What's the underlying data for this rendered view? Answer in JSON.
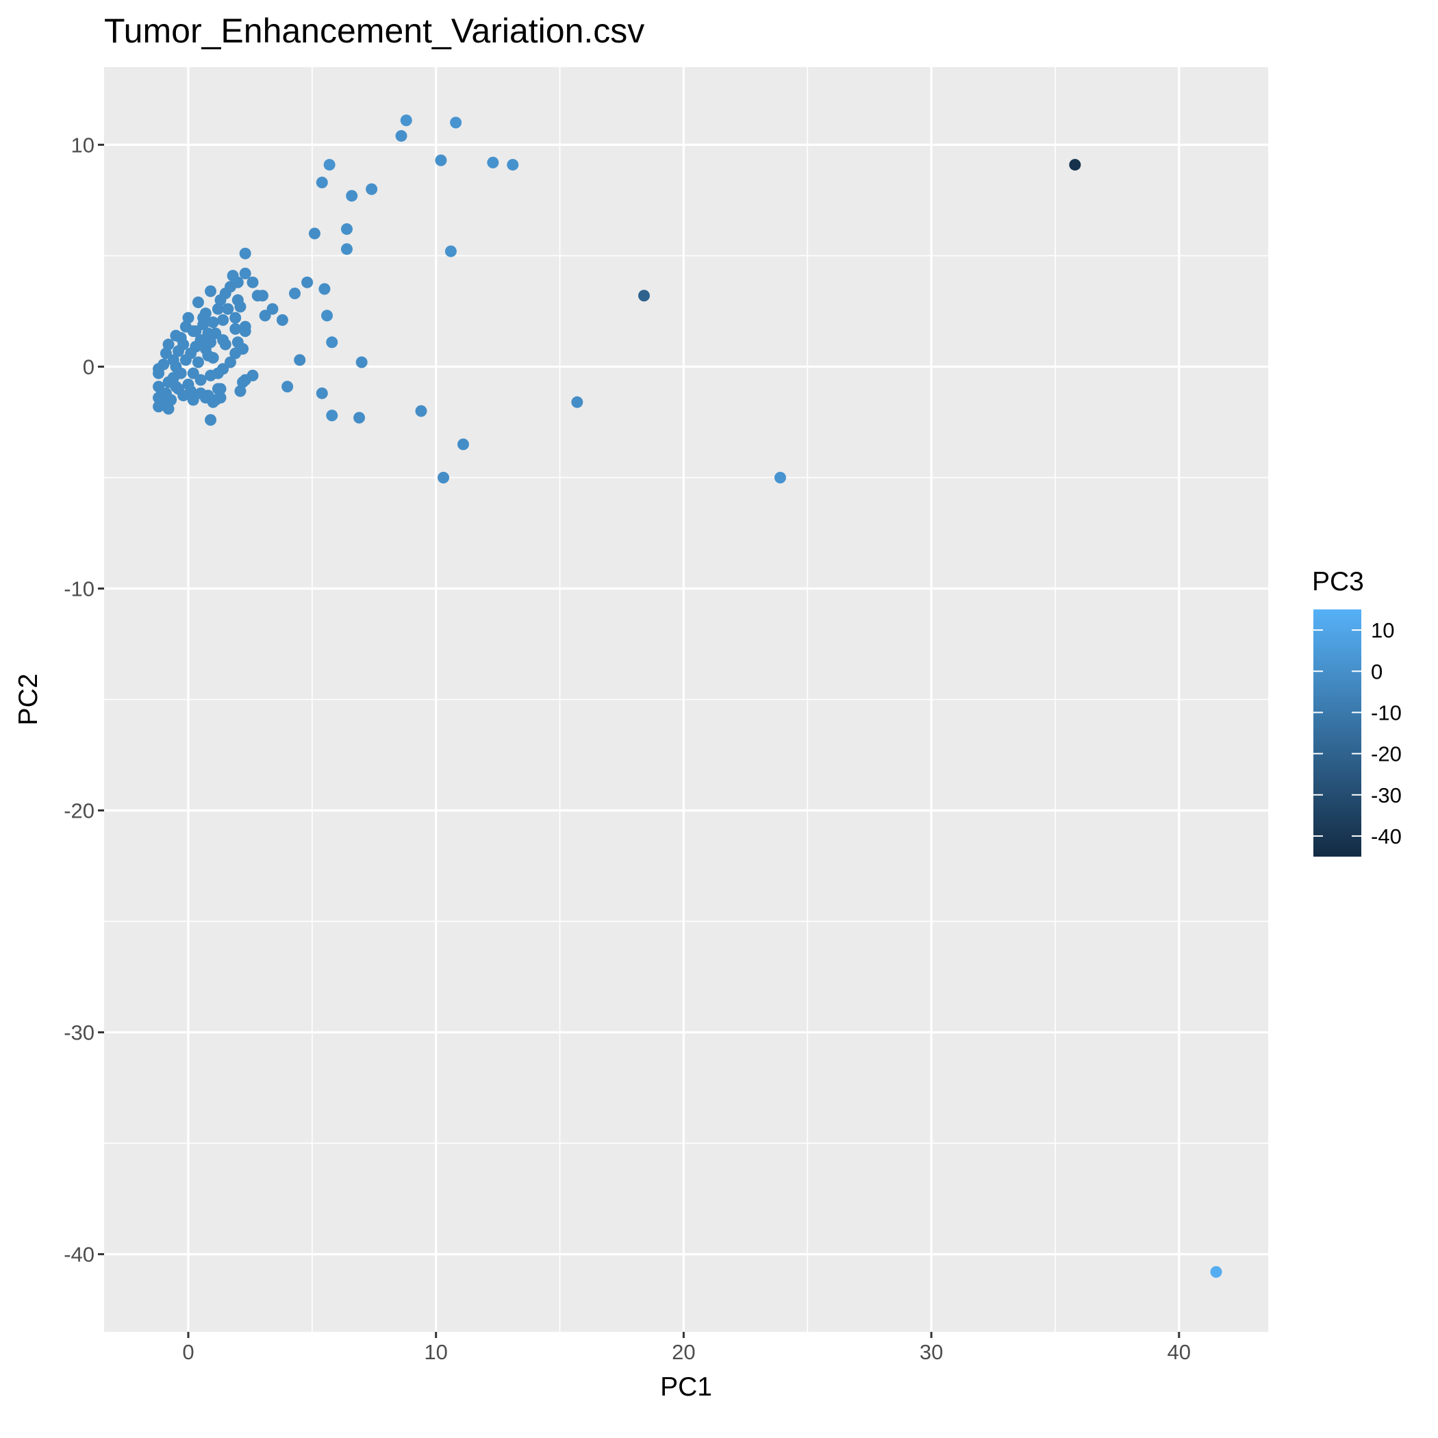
{
  "chart_data": {
    "type": "scatter",
    "title": "Tumor_Enhancement_Variation.csv",
    "xlabel": "PC1",
    "ylabel": "PC2",
    "xlim": [
      -3.4,
      43.6
    ],
    "ylim": [
      -43.5,
      13.5
    ],
    "xticks": [
      0,
      10,
      20,
      30,
      40
    ],
    "xtick_labels": [
      "0",
      "10",
      "20",
      "30",
      "40"
    ],
    "yticks": [
      10,
      0,
      -10,
      -20,
      -30,
      -40
    ],
    "ytick_labels": [
      "10",
      "0",
      "-10",
      "-20",
      "-30",
      "-40"
    ],
    "grid": true,
    "color_legend": {
      "title": "PC3",
      "range": [
        -45,
        15
      ],
      "ticks": [
        10,
        0,
        -10,
        -20,
        -30,
        -40
      ],
      "tick_labels": [
        "10",
        "0",
        "-10",
        "-20",
        "-30",
        "-40"
      ],
      "low_color": "#132B43",
      "high_color": "#56B1F7",
      "placement": "right"
    },
    "colors": {
      "panel_background": "#EBEBEB",
      "grid_major": "#FFFFFF",
      "tick_text": "#4D4D4D"
    },
    "points": [
      {
        "x": 41.5,
        "y": -40.8,
        "c": 13
      },
      {
        "x": 35.8,
        "y": 9.1,
        "c": -42
      },
      {
        "x": 18.4,
        "y": 3.2,
        "c": -20
      },
      {
        "x": 23.9,
        "y": -5.0,
        "c": 2
      },
      {
        "x": 15.7,
        "y": -1.6,
        "c": -1
      },
      {
        "x": 10.3,
        "y": -5.0,
        "c": -1
      },
      {
        "x": 11.1,
        "y": -3.5,
        "c": -1
      },
      {
        "x": 9.4,
        "y": -2.0,
        "c": -1
      },
      {
        "x": 8.8,
        "y": 11.1,
        "c": 2
      },
      {
        "x": 10.8,
        "y": 11.0,
        "c": 2
      },
      {
        "x": 8.6,
        "y": 10.4,
        "c": 0
      },
      {
        "x": 10.2,
        "y": 9.3,
        "c": 0
      },
      {
        "x": 12.3,
        "y": 9.2,
        "c": 1
      },
      {
        "x": 13.1,
        "y": 9.1,
        "c": 1
      },
      {
        "x": 5.7,
        "y": 9.1,
        "c": 2
      },
      {
        "x": 5.4,
        "y": 8.3,
        "c": 0
      },
      {
        "x": 6.6,
        "y": 7.7,
        "c": 0
      },
      {
        "x": 7.4,
        "y": 8.0,
        "c": 0
      },
      {
        "x": 10.6,
        "y": 5.2,
        "c": 1
      },
      {
        "x": 5.1,
        "y": 6.0,
        "c": -1
      },
      {
        "x": 6.4,
        "y": 6.2,
        "c": 0
      },
      {
        "x": 6.4,
        "y": 5.3,
        "c": 0
      },
      {
        "x": 5.5,
        "y": 3.5,
        "c": -1
      },
      {
        "x": 4.8,
        "y": 3.8,
        "c": -2
      },
      {
        "x": 4.3,
        "y": 3.3,
        "c": -1
      },
      {
        "x": 5.6,
        "y": 2.3,
        "c": 0
      },
      {
        "x": 5.8,
        "y": 1.1,
        "c": 0
      },
      {
        "x": 7.0,
        "y": 0.2,
        "c": -1
      },
      {
        "x": 4.5,
        "y": 0.3,
        "c": -2
      },
      {
        "x": 4.0,
        "y": -0.9,
        "c": -1
      },
      {
        "x": 5.4,
        "y": -1.2,
        "c": -1
      },
      {
        "x": 5.8,
        "y": -2.2,
        "c": 0
      },
      {
        "x": 6.9,
        "y": -2.3,
        "c": -1
      },
      {
        "x": 3.8,
        "y": 2.1,
        "c": -2
      },
      {
        "x": 3.4,
        "y": 2.6,
        "c": -2
      },
      {
        "x": 3.1,
        "y": 2.3,
        "c": -2
      },
      {
        "x": 3.0,
        "y": 3.2,
        "c": -2
      },
      {
        "x": 2.8,
        "y": 3.2,
        "c": -2
      },
      {
        "x": 2.6,
        "y": 3.8,
        "c": -2
      },
      {
        "x": 2.3,
        "y": 4.2,
        "c": -1
      },
      {
        "x": 2.3,
        "y": 5.1,
        "c": -1
      },
      {
        "x": 2.0,
        "y": 3.8,
        "c": -2
      },
      {
        "x": 1.8,
        "y": 4.1,
        "c": -1
      },
      {
        "x": 1.7,
        "y": 3.6,
        "c": -2
      },
      {
        "x": 1.5,
        "y": 3.3,
        "c": -2
      },
      {
        "x": 2.1,
        "y": 2.7,
        "c": -2
      },
      {
        "x": 2.3,
        "y": 1.8,
        "c": -2
      },
      {
        "x": 2.3,
        "y": 1.6,
        "c": -2
      },
      {
        "x": 1.9,
        "y": 2.2,
        "c": -2
      },
      {
        "x": 2.0,
        "y": 3.0,
        "c": -2
      },
      {
        "x": 1.3,
        "y": 3.0,
        "c": -2
      },
      {
        "x": 1.2,
        "y": 2.6,
        "c": -2
      },
      {
        "x": 0.9,
        "y": 3.4,
        "c": -2
      },
      {
        "x": 0.4,
        "y": 2.9,
        "c": -2
      },
      {
        "x": 0.7,
        "y": 2.4,
        "c": -2
      },
      {
        "x": 0.0,
        "y": 2.2,
        "c": -2
      },
      {
        "x": 0.2,
        "y": 1.6,
        "c": -2
      },
      {
        "x": 2.2,
        "y": 0.8,
        "c": -2
      },
      {
        "x": 1.9,
        "y": 0.6,
        "c": -2
      },
      {
        "x": 2.0,
        "y": 1.1,
        "c": -2
      },
      {
        "x": 1.4,
        "y": 1.2,
        "c": -2
      },
      {
        "x": 1.5,
        "y": 1.0,
        "c": -2
      },
      {
        "x": 2.6,
        "y": -0.4,
        "c": -2
      },
      {
        "x": 2.3,
        "y": -0.6,
        "c": -2
      },
      {
        "x": 2.2,
        "y": -0.7,
        "c": -2
      },
      {
        "x": 2.1,
        "y": -1.1,
        "c": -2
      },
      {
        "x": 1.4,
        "y": -0.1,
        "c": -2
      },
      {
        "x": 1.2,
        "y": -0.3,
        "c": -2
      },
      {
        "x": 1.2,
        "y": -1.0,
        "c": -2
      },
      {
        "x": 1.3,
        "y": -1.0,
        "c": -2
      },
      {
        "x": 1.3,
        "y": -1.4,
        "c": -2
      },
      {
        "x": 1.1,
        "y": -1.5,
        "c": -2
      },
      {
        "x": 1.0,
        "y": -1.6,
        "c": -2
      },
      {
        "x": 0.8,
        "y": -1.3,
        "c": -2
      },
      {
        "x": 0.7,
        "y": -1.4,
        "c": -2
      },
      {
        "x": 0.5,
        "y": -1.2,
        "c": -2
      },
      {
        "x": 0.9,
        "y": -2.4,
        "c": -2
      },
      {
        "x": 0.8,
        "y": 0.5,
        "c": -2
      },
      {
        "x": 0.9,
        "y": -0.4,
        "c": -2
      },
      {
        "x": 1.0,
        "y": 0.4,
        "c": -2
      },
      {
        "x": 0.6,
        "y": 1.9,
        "c": -2
      },
      {
        "x": 1.0,
        "y": 2.0,
        "c": -2
      },
      {
        "x": 0.8,
        "y": 1.5,
        "c": -2
      },
      {
        "x": 0.5,
        "y": 1.2,
        "c": -2
      },
      {
        "x": 0.3,
        "y": 0.9,
        "c": -2
      },
      {
        "x": 0.1,
        "y": 0.6,
        "c": -2
      },
      {
        "x": 0.4,
        "y": 0.2,
        "c": -2
      },
      {
        "x": 0.2,
        "y": -0.3,
        "c": -2
      },
      {
        "x": 0.0,
        "y": -0.8,
        "c": -2
      },
      {
        "x": -0.1,
        "y": 0.3,
        "c": -2
      },
      {
        "x": -0.2,
        "y": 1.0,
        "c": -2
      },
      {
        "x": -0.3,
        "y": 1.3,
        "c": -2
      },
      {
        "x": -0.4,
        "y": 0.7,
        "c": -2
      },
      {
        "x": -0.5,
        "y": 0.0,
        "c": -2
      },
      {
        "x": -0.6,
        "y": -0.5,
        "c": -2
      },
      {
        "x": -0.4,
        "y": -1.0,
        "c": -2
      },
      {
        "x": -0.2,
        "y": -1.3,
        "c": -2
      },
      {
        "x": -0.7,
        "y": -1.5,
        "c": -2
      },
      {
        "x": -0.8,
        "y": -1.9,
        "c": -2
      },
      {
        "x": -1.0,
        "y": -1.7,
        "c": -2
      },
      {
        "x": -1.1,
        "y": -1.3,
        "c": -2
      },
      {
        "x": -1.2,
        "y": -0.9,
        "c": -2
      },
      {
        "x": -1.2,
        "y": -0.3,
        "c": -2
      },
      {
        "x": -1.2,
        "y": -0.1,
        "c": -2
      },
      {
        "x": -1.0,
        "y": 0.1,
        "c": -2
      },
      {
        "x": -0.9,
        "y": 0.6,
        "c": -2
      },
      {
        "x": -0.8,
        "y": -0.7,
        "c": -2
      },
      {
        "x": -0.6,
        "y": 0.3,
        "c": -2
      },
      {
        "x": -1.2,
        "y": -1.4,
        "c": -2
      },
      {
        "x": -1.2,
        "y": -1.8,
        "c": -2
      },
      {
        "x": -0.3,
        "y": -0.3,
        "c": -2
      },
      {
        "x": 0.1,
        "y": -1.1,
        "c": -2
      },
      {
        "x": 0.3,
        "y": 1.6,
        "c": -2
      },
      {
        "x": 0.6,
        "y": 2.2,
        "c": -2
      },
      {
        "x": 0.9,
        "y": 1.1,
        "c": -2
      },
      {
        "x": 1.1,
        "y": 1.5,
        "c": -2
      },
      {
        "x": 1.4,
        "y": 2.1,
        "c": -2
      },
      {
        "x": 1.6,
        "y": 2.6,
        "c": -2
      },
      {
        "x": 0.7,
        "y": 0.8,
        "c": -2
      },
      {
        "x": 0.5,
        "y": -0.6,
        "c": -2
      },
      {
        "x": -0.1,
        "y": 1.8,
        "c": -2
      },
      {
        "x": -0.5,
        "y": 1.4,
        "c": -2
      },
      {
        "x": -0.8,
        "y": 1.0,
        "c": -2
      },
      {
        "x": -0.9,
        "y": -1.2,
        "c": -2
      },
      {
        "x": -0.5,
        "y": -0.9,
        "c": -2
      },
      {
        "x": 0.2,
        "y": -1.5,
        "c": -2
      },
      {
        "x": 1.7,
        "y": 0.2,
        "c": -2
      },
      {
        "x": 1.9,
        "y": 1.7,
        "c": -2
      }
    ]
  }
}
